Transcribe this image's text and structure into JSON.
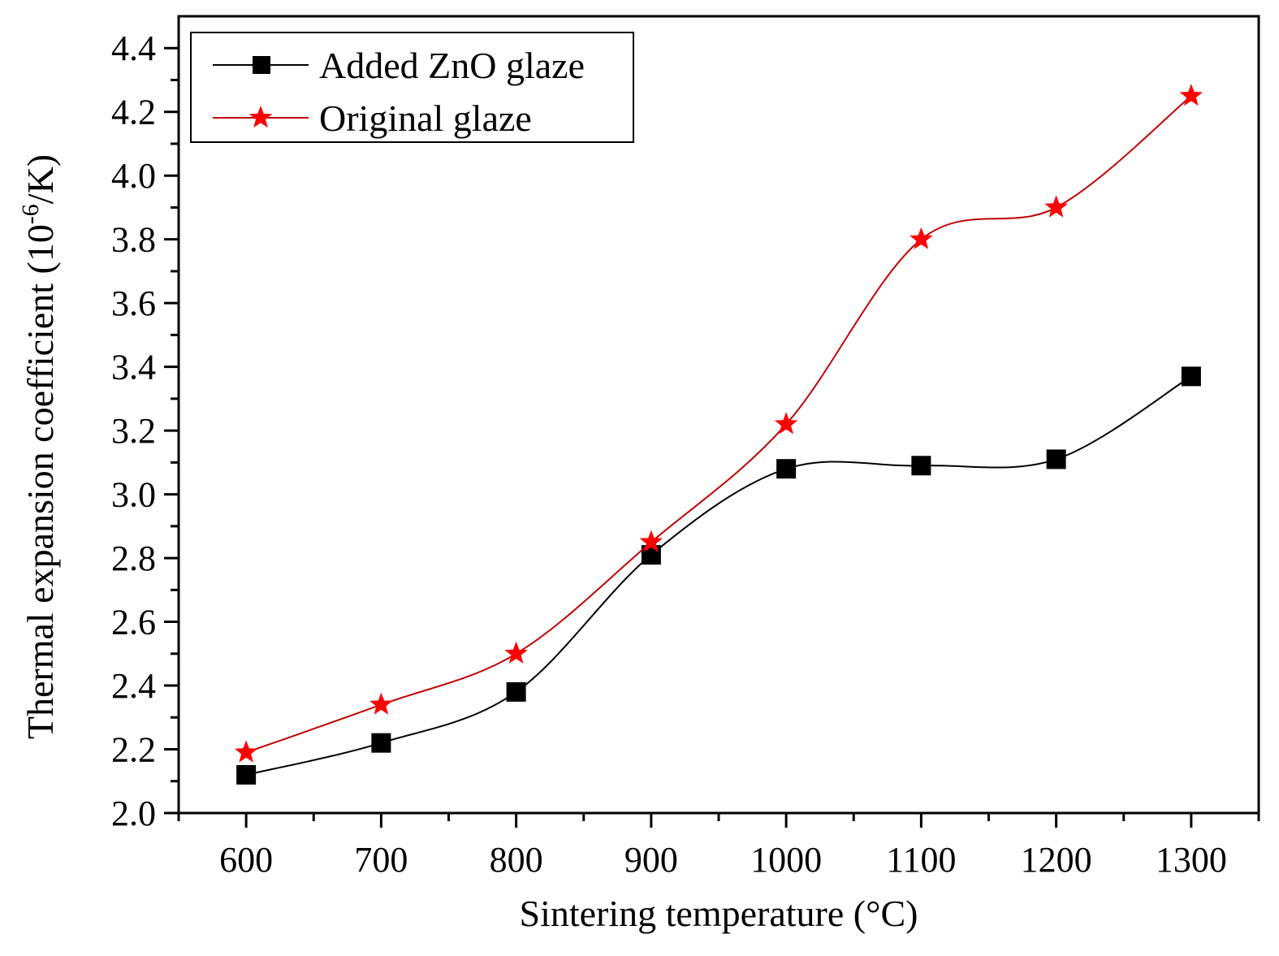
{
  "chart_data": {
    "type": "line",
    "title": "",
    "xlabel": "Sintering temperature (°C)",
    "ylabel_main": "Thermal expansion coefficient (10",
    "ylabel_sup": "-6",
    "ylabel_end": "/K)",
    "xlim": [
      550,
      1350
    ],
    "ylim": [
      2.0,
      4.5
    ],
    "x_ticks": [
      600,
      700,
      800,
      900,
      1000,
      1100,
      1200,
      1300
    ],
    "x_tick_labels": [
      "600",
      "700",
      "800",
      "900",
      "1000",
      "1100",
      "1200",
      "1300"
    ],
    "y_ticks": [
      2.0,
      2.2,
      2.4,
      2.6,
      2.8,
      3.0,
      3.2,
      3.4,
      3.6,
      3.8,
      4.0,
      4.2,
      4.4
    ],
    "y_tick_labels": [
      "2.0",
      "2.2",
      "2.4",
      "2.6",
      "2.8",
      "3.0",
      "3.2",
      "3.4",
      "3.6",
      "3.8",
      "4.0",
      "4.2",
      "4.4"
    ],
    "grid": false,
    "legend_position": "top-left",
    "x": [
      600,
      700,
      800,
      900,
      1000,
      1100,
      1200,
      1300
    ],
    "series": [
      {
        "name": "Added ZnO glaze",
        "color": "#000000",
        "marker": "square",
        "values": [
          2.12,
          2.22,
          2.38,
          2.81,
          3.08,
          3.09,
          3.11,
          3.37
        ]
      },
      {
        "name": "Original glaze",
        "color": "#ff0000",
        "marker": "star",
        "line_color": "#c00000",
        "values": [
          2.19,
          2.34,
          2.5,
          2.85,
          3.22,
          3.8,
          3.9,
          4.25
        ]
      }
    ]
  }
}
